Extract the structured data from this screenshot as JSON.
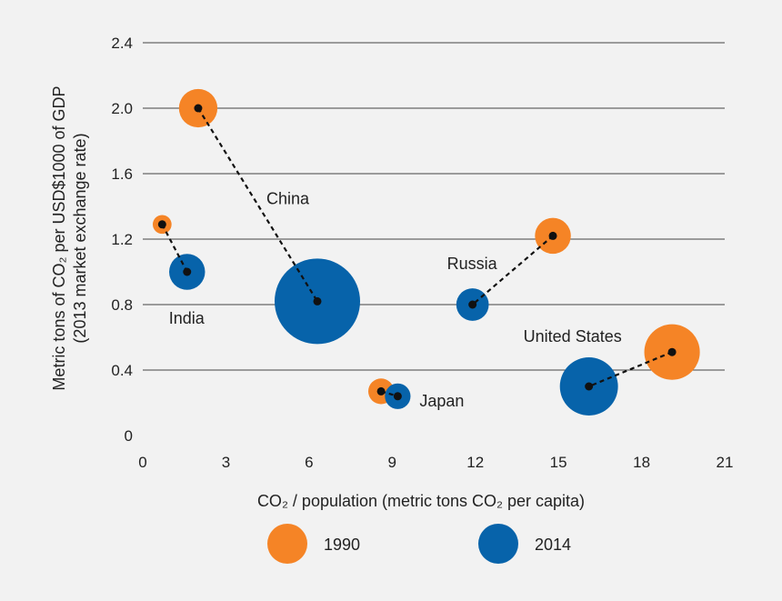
{
  "chart_data": {
    "type": "scatter",
    "subtype": "bubble",
    "xlabel": "CO₂ / population (metric tons CO₂ per capita)",
    "ylabel_line1": "Metric tons of CO₂ per USD$1000 of GDP",
    "ylabel_line2": "(2013 market exchange rate)",
    "xlim": [
      0,
      21
    ],
    "ylim": [
      0,
      2.4
    ],
    "x_ticks": [
      "0",
      "3",
      "6",
      "9",
      "12",
      "15",
      "18",
      "21"
    ],
    "y_ticks": [
      "0",
      "0.4",
      "0.8",
      "1.2",
      "1.6",
      "2.0",
      "2.4"
    ],
    "x_tick_values": [
      0,
      3,
      6,
      9,
      12,
      15,
      18,
      21
    ],
    "y_tick_values": [
      0,
      0.4,
      0.8,
      1.2,
      1.6,
      2.0,
      2.4
    ],
    "grid": "horizontal",
    "legend_placement": "bottom",
    "series": [
      {
        "name": "1990",
        "color": "#f58426"
      },
      {
        "name": "2014",
        "color": "#0763aa"
      }
    ],
    "countries": [
      {
        "label": "China",
        "points": [
          {
            "year": "1990",
            "x": 2.0,
            "y": 2.0,
            "size": 0.45
          },
          {
            "year": "2014",
            "x": 6.3,
            "y": 0.82,
            "size": 1.0
          }
        ]
      },
      {
        "label": "India",
        "points": [
          {
            "year": "1990",
            "x": 0.7,
            "y": 1.29,
            "size": 0.22
          },
          {
            "year": "2014",
            "x": 1.6,
            "y": 1.0,
            "size": 0.42
          }
        ]
      },
      {
        "label": "Japan",
        "points": [
          {
            "year": "1990",
            "x": 8.6,
            "y": 0.27,
            "size": 0.3
          },
          {
            "year": "2014",
            "x": 9.2,
            "y": 0.24,
            "size": 0.3
          }
        ]
      },
      {
        "label": "Russia",
        "points": [
          {
            "year": "1990",
            "x": 14.8,
            "y": 1.22,
            "size": 0.42
          },
          {
            "year": "2014",
            "x": 11.9,
            "y": 0.8,
            "size": 0.38
          }
        ]
      },
      {
        "label": "United States",
        "points": [
          {
            "year": "1990",
            "x": 19.1,
            "y": 0.51,
            "size": 0.65
          },
          {
            "year": "2014",
            "x": 16.1,
            "y": 0.3,
            "size": 0.68
          }
        ]
      }
    ]
  }
}
